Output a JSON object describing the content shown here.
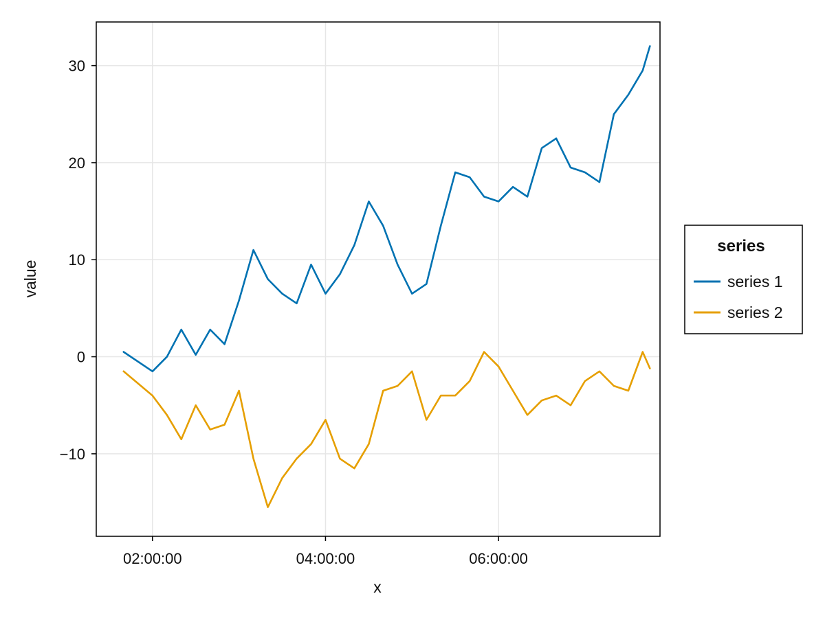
{
  "chart_data": {
    "type": "line",
    "title": "",
    "xlabel": "x",
    "ylabel": "value",
    "x_tick_labels": [
      "02:00:00",
      "04:00:00",
      "06:00:00"
    ],
    "y_tick_labels": [
      "−10",
      "0",
      "10",
      "20",
      "30"
    ],
    "xlim": [
      "01:21:00",
      "07:52:00"
    ],
    "ylim": [
      -18.5,
      34.5
    ],
    "x_ticks": [
      "02:00:00",
      "04:00:00",
      "06:00:00"
    ],
    "y_ticks": [
      -10,
      0,
      10,
      20,
      30
    ],
    "grid": true,
    "legend": {
      "title": "series",
      "position": "right"
    },
    "x": [
      "01:40:00",
      "02:00:00",
      "02:10:00",
      "02:20:00",
      "02:30:00",
      "02:40:00",
      "02:50:00",
      "03:00:00",
      "03:10:00",
      "03:20:00",
      "03:30:00",
      "03:40:00",
      "03:50:00",
      "04:00:00",
      "04:10:00",
      "04:20:00",
      "04:30:00",
      "04:40:00",
      "04:50:00",
      "05:00:00",
      "05:10:00",
      "05:20:00",
      "05:30:00",
      "05:40:00",
      "05:50:00",
      "06:00:00",
      "06:10:00",
      "06:20:00",
      "06:30:00",
      "06:40:00",
      "06:50:00",
      "07:00:00",
      "07:10:00",
      "07:20:00",
      "07:30:00",
      "07:40:00",
      "07:45:00"
    ],
    "series": [
      {
        "name": "series 1",
        "color": "#0072b2",
        "values": [
          0.5,
          -1.5,
          0.0,
          2.8,
          0.2,
          2.8,
          1.3,
          5.8,
          11.0,
          8.0,
          6.5,
          5.5,
          9.5,
          6.5,
          8.5,
          11.5,
          16.0,
          13.5,
          9.5,
          6.5,
          7.5,
          13.5,
          19.0,
          18.5,
          16.5,
          16.0,
          17.5,
          16.5,
          21.5,
          22.5,
          19.5,
          19.0,
          18.0,
          25.0,
          27.0,
          29.5,
          32.0
        ]
      },
      {
        "name": "series 2",
        "color": "#e69f00",
        "values": [
          -1.5,
          -4.0,
          -6.0,
          -8.5,
          -5.0,
          -7.5,
          -7.0,
          -3.5,
          -10.5,
          -15.5,
          -12.5,
          -10.5,
          -9.0,
          -6.5,
          -10.5,
          -11.5,
          -9.0,
          -3.5,
          -3.0,
          -1.5,
          -6.5,
          -4.0,
          -4.0,
          -2.5,
          0.5,
          -1.0,
          -3.5,
          -6.0,
          -4.5,
          -4.0,
          -5.0,
          -2.5,
          -1.5,
          -3.0,
          -3.5,
          0.5,
          -1.2
        ]
      }
    ]
  }
}
